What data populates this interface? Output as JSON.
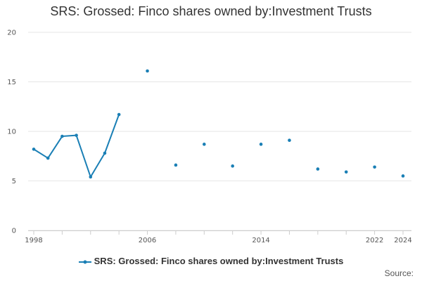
{
  "chart_data": {
    "type": "line",
    "title": "SRS: Grossed: Finco shares owned by:Investment Trusts",
    "xlabel": "",
    "ylabel": "",
    "x_range": [
      1998,
      2024
    ],
    "ylim": [
      0,
      20
    ],
    "y_ticks": [
      0,
      5,
      10,
      15,
      20
    ],
    "x_ticks": [
      1998,
      2006,
      2014,
      2022,
      2024
    ],
    "grid": "horizontal",
    "legend_position": "bottom",
    "series": [
      {
        "name": "SRS: Grossed: Finco shares owned by:Investment Trusts",
        "color": "#1a7fb5",
        "points": [
          {
            "x": 1998,
            "y": 8.2
          },
          {
            "x": 1999,
            "y": 7.3
          },
          {
            "x": 2000,
            "y": 9.5
          },
          {
            "x": 2001,
            "y": 9.6
          },
          {
            "x": 2002,
            "y": 5.4
          },
          {
            "x": 2003,
            "y": 7.8
          },
          {
            "x": 2004,
            "y": 11.7
          },
          {
            "x": 2006,
            "y": 16.1
          },
          {
            "x": 2008,
            "y": 6.6
          },
          {
            "x": 2010,
            "y": 8.7
          },
          {
            "x": 2012,
            "y": 6.5
          },
          {
            "x": 2014,
            "y": 8.7
          },
          {
            "x": 2016,
            "y": 9.1
          },
          {
            "x": 2018,
            "y": 6.2
          },
          {
            "x": 2020,
            "y": 5.9
          },
          {
            "x": 2022,
            "y": 6.4
          },
          {
            "x": 2024,
            "y": 5.5
          }
        ]
      }
    ]
  },
  "source_label": "Source:"
}
